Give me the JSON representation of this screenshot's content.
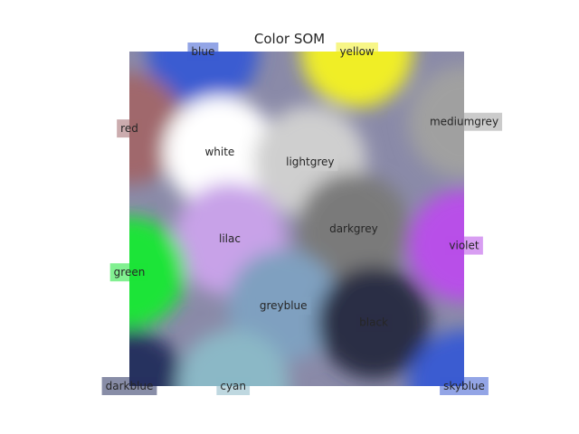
{
  "chart_data": {
    "type": "heatmap",
    "title": "Color SOM",
    "xlabel": "",
    "ylabel": "",
    "grid": false,
    "legend": "none",
    "xlim": [
      0,
      1
    ],
    "ylim": [
      0,
      1
    ],
    "labels": [
      {
        "name": "blue",
        "x": 0.22,
        "y": 0.0,
        "color": "#3a5bd1"
      },
      {
        "name": "yellow",
        "x": 0.68,
        "y": 0.0,
        "color": "#f0ee25"
      },
      {
        "name": "red",
        "x": 0.0,
        "y": 0.23,
        "color": "#a0676c"
      },
      {
        "name": "mediumgrey",
        "x": 1.0,
        "y": 0.21,
        "color": "#a0a0a0"
      },
      {
        "name": "white",
        "x": 0.27,
        "y": 0.3,
        "color": "#ffffff"
      },
      {
        "name": "lightgrey",
        "x": 0.54,
        "y": 0.33,
        "color": "#cfcfcf"
      },
      {
        "name": "lilac",
        "x": 0.3,
        "y": 0.56,
        "color": "#c8a2e8"
      },
      {
        "name": "darkgrey",
        "x": 0.67,
        "y": 0.53,
        "color": "#7a7a7a"
      },
      {
        "name": "violet",
        "x": 1.0,
        "y": 0.58,
        "color": "#b84fe8"
      },
      {
        "name": "green",
        "x": 0.0,
        "y": 0.66,
        "color": "#1ce437"
      },
      {
        "name": "greyblue",
        "x": 0.46,
        "y": 0.76,
        "color": "#7fa0c0"
      },
      {
        "name": "black",
        "x": 0.73,
        "y": 0.81,
        "color": "#2a2d45"
      },
      {
        "name": "darkblue",
        "x": 0.0,
        "y": 1.0,
        "color": "#27305f"
      },
      {
        "name": "cyan",
        "x": 0.31,
        "y": 1.0,
        "color": "#8bb8c6"
      },
      {
        "name": "skyblue",
        "x": 1.0,
        "y": 1.0,
        "color": "#3a5bd1"
      }
    ]
  }
}
